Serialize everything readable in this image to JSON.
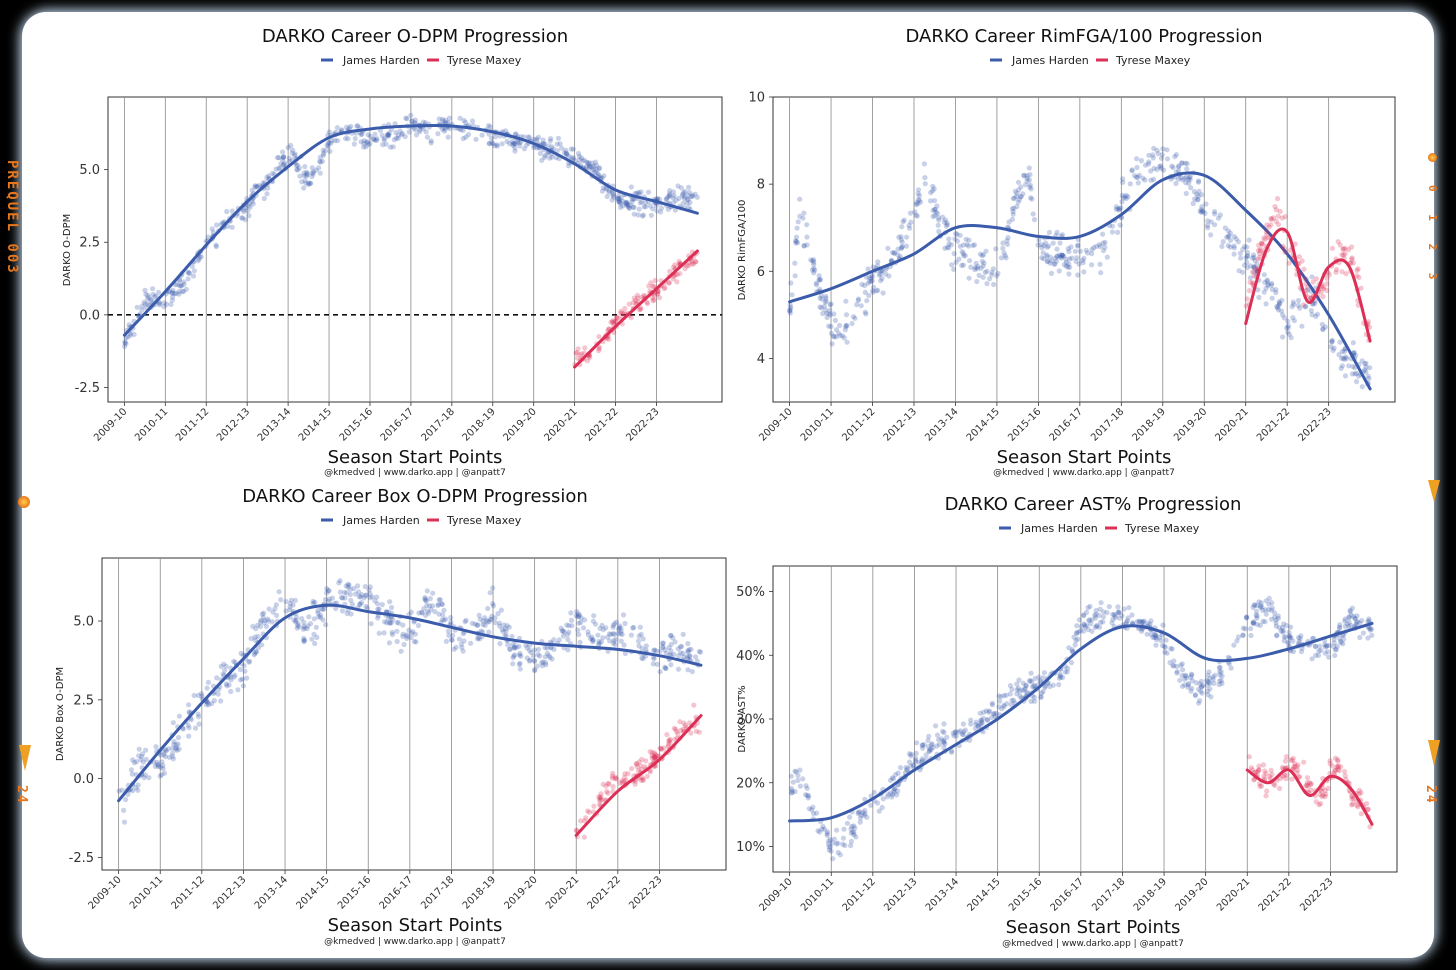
{
  "frame": {
    "left_label": "PREQUEL 003",
    "left_frame_no": "24",
    "right_counter": "0 1 2 3",
    "right_frame_no": "24",
    "accent": "#e8761c"
  },
  "colors": {
    "harden": "#3b5bab",
    "maxey": "#dc2f55"
  },
  "chart_data": [
    {
      "type": "scatter",
      "title": "DARKO Career O-DPM Progression",
      "xlabel": "Season Start Points",
      "ylabel": "DARKO O-DPM",
      "credit": "@kmedved | www.darko.app | @anpatt7",
      "legend": [
        "James Harden",
        "Tyrese Maxey"
      ],
      "categories": [
        "2009-10",
        "2010-11",
        "2011-12",
        "2012-13",
        "2013-14",
        "2014-15",
        "2015-16",
        "2016-17",
        "2017-18",
        "2018-19",
        "2019-20",
        "2020-21",
        "2021-22",
        "2022-23"
      ],
      "xlim": [
        -0.4,
        14.6
      ],
      "ylim": [
        -3.0,
        7.5
      ],
      "yticks": [
        -2.5,
        0.0,
        2.5,
        5.0
      ],
      "ytick_labels": [
        "-2.5",
        "0.0",
        "2.5",
        "5.0"
      ],
      "hline": 0,
      "series": [
        {
          "name": "James Harden",
          "noise": 0.3,
          "trend_x": [
            0,
            1,
            2,
            3,
            4,
            5,
            6,
            7,
            8,
            9,
            10,
            11,
            12,
            13,
            14
          ],
          "trend_y": [
            -0.7,
            0.8,
            2.4,
            3.9,
            5.1,
            6.1,
            6.4,
            6.5,
            6.5,
            6.3,
            5.9,
            5.2,
            4.3,
            3.9,
            3.5
          ],
          "points_x": [
            0,
            0.5,
            1,
            1.5,
            2,
            2.5,
            3,
            3.5,
            4,
            4.25,
            4.5,
            4.75,
            5,
            5.5,
            6,
            6.5,
            7,
            7.5,
            8,
            8.5,
            9,
            9.5,
            10,
            10.5,
            11,
            11.5,
            12,
            12.5,
            13,
            13.5,
            14
          ],
          "points_y": [
            -1.0,
            0.4,
            0.5,
            1.2,
            2.5,
            3.2,
            3.8,
            4.5,
            5.6,
            5.2,
            4.4,
            5.3,
            6.0,
            6.4,
            6.0,
            6.2,
            6.6,
            6.4,
            6.5,
            6.5,
            6.1,
            6.0,
            5.9,
            5.7,
            5.4,
            5.0,
            4.0,
            3.8,
            3.8,
            4.0,
            4.1
          ]
        },
        {
          "name": "Tyrese Maxey",
          "noise": 0.25,
          "trend_x": [
            11,
            12,
            13,
            14
          ],
          "trend_y": [
            -1.8,
            -0.4,
            0.9,
            2.2
          ],
          "points_x": [
            11,
            11.5,
            12,
            12.5,
            13,
            13.5,
            14
          ],
          "points_y": [
            -1.5,
            -1.3,
            -0.2,
            0.4,
            0.9,
            1.5,
            2.0
          ]
        }
      ]
    },
    {
      "type": "scatter",
      "title": "DARKO Career RimFGA/100 Progression",
      "xlabel": "Season Start Points",
      "ylabel": "DARKO RimFGA/100",
      "credit": "@kmedved | www.darko.app | @anpatt7",
      "legend": [
        "James Harden",
        "Tyrese Maxey"
      ],
      "categories": [
        "2009-10",
        "2010-11",
        "2011-12",
        "2012-13",
        "2013-14",
        "2014-15",
        "2015-16",
        "2016-17",
        "2017-18",
        "2018-19",
        "2019-20",
        "2020-21",
        "2021-22",
        "2022-23"
      ],
      "xlim": [
        -0.4,
        14.6
      ],
      "ylim": [
        3.0,
        10.0
      ],
      "yticks": [
        4,
        6,
        8,
        10
      ],
      "ytick_labels": [
        "4",
        "6",
        "8",
        "10"
      ],
      "series": [
        {
          "name": "James Harden",
          "noise": 0.35,
          "trend_x": [
            0,
            1,
            2,
            3,
            4,
            5,
            6,
            7,
            8,
            9,
            10,
            11,
            12,
            13,
            14
          ],
          "trend_y": [
            5.3,
            5.6,
            6.0,
            6.4,
            7.0,
            7.0,
            6.8,
            6.8,
            7.3,
            8.1,
            8.2,
            7.4,
            6.4,
            5.0,
            3.3
          ],
          "points_x": [
            0,
            0.25,
            0.5,
            0.75,
            1,
            1.25,
            1.5,
            2,
            2.5,
            3,
            3.25,
            3.5,
            4,
            4.5,
            5,
            5.5,
            5.75,
            6,
            6.5,
            7,
            7.5,
            8,
            8.5,
            9,
            9.5,
            10,
            10.5,
            11,
            11.5,
            12,
            12.5,
            13,
            13.5,
            14
          ],
          "points_y": [
            5.0,
            7.5,
            6.2,
            5.5,
            4.8,
            4.5,
            5.0,
            5.8,
            6.2,
            7.5,
            8.0,
            7.4,
            6.4,
            6.2,
            6.0,
            7.8,
            8.2,
            6.6,
            6.4,
            6.3,
            6.5,
            7.5,
            8.5,
            8.6,
            8.3,
            7.4,
            6.8,
            6.3,
            5.6,
            4.6,
            5.6,
            4.4,
            4.0,
            3.6
          ]
        },
        {
          "name": "Tyrese Maxey",
          "noise": 0.35,
          "trend_x": [
            11,
            11.5,
            12,
            12.5,
            13,
            13.5,
            14
          ],
          "trend_y": [
            4.8,
            6.5,
            6.9,
            5.3,
            6.1,
            6.1,
            4.4
          ],
          "points_x": [
            11,
            11.25,
            11.5,
            11.75,
            12,
            12.25,
            12.5,
            12.75,
            13,
            13.25,
            13.5,
            13.75,
            14
          ],
          "points_y": [
            5.0,
            6.0,
            6.8,
            7.4,
            6.6,
            6.0,
            5.4,
            5.6,
            6.0,
            6.2,
            6.4,
            5.6,
            4.5
          ]
        }
      ]
    },
    {
      "type": "scatter",
      "title": "DARKO Career Box O-DPM Progression",
      "xlabel": "Season Start Points",
      "ylabel": "DARKO Box O-DPM",
      "credit": "@kmedved | www.darko.app | @anpatt7",
      "legend": [
        "James Harden",
        "Tyrese Maxey"
      ],
      "categories": [
        "2009-10",
        "2010-11",
        "2011-12",
        "2012-13",
        "2013-14",
        "2014-15",
        "2015-16",
        "2016-17",
        "2017-18",
        "2018-19",
        "2019-20",
        "2020-21",
        "2021-22",
        "2022-23"
      ],
      "xlim": [
        -0.4,
        14.6
      ],
      "ylim": [
        -2.9,
        7.0
      ],
      "yticks": [
        -2.5,
        0.0,
        2.5,
        5.0
      ],
      "ytick_labels": [
        "-2.5",
        "0.0",
        "2.5",
        "5.0"
      ],
      "series": [
        {
          "name": "James Harden",
          "noise": 0.45,
          "trend_x": [
            0,
            1,
            2,
            3,
            4,
            5,
            6,
            7,
            8,
            9,
            10,
            11,
            12,
            13,
            14
          ],
          "trend_y": [
            -0.7,
            0.9,
            2.4,
            3.8,
            5.1,
            5.5,
            5.3,
            5.1,
            4.8,
            4.5,
            4.3,
            4.2,
            4.1,
            3.9,
            3.6
          ],
          "points_x": [
            0,
            0.5,
            1,
            1.5,
            2,
            2.5,
            3,
            3.5,
            4,
            4.5,
            5,
            5.5,
            6,
            6.5,
            7,
            7.5,
            8,
            8.5,
            9,
            9.5,
            10,
            10.5,
            11,
            11.5,
            12,
            12.5,
            13,
            13.5,
            14
          ],
          "points_y": [
            -1.0,
            0.4,
            0.5,
            1.6,
            2.5,
            3.2,
            3.5,
            5.0,
            5.6,
            4.6,
            5.5,
            5.8,
            5.7,
            5.0,
            4.6,
            5.8,
            4.7,
            4.4,
            5.4,
            4.0,
            3.9,
            4.1,
            5.0,
            4.5,
            4.6,
            4.2,
            3.9,
            4.0,
            3.8
          ]
        },
        {
          "name": "Tyrese Maxey",
          "noise": 0.35,
          "trend_x": [
            11,
            12,
            13,
            14
          ],
          "trend_y": [
            -1.8,
            -0.4,
            0.6,
            2.0
          ],
          "points_x": [
            11,
            11.5,
            12,
            12.5,
            13,
            13.5,
            14
          ],
          "points_y": [
            -1.6,
            -0.8,
            0.0,
            0.2,
            0.8,
            1.6,
            1.9
          ]
        }
      ]
    },
    {
      "type": "scatter",
      "title": "DARKO Career AST% Progression",
      "xlabel": "Season Start Points",
      "ylabel": "DARKO AST%",
      "credit": "@kmedved | www.darko.app | @anpatt7",
      "legend": [
        "James Harden",
        "Tyrese Maxey"
      ],
      "categories": [
        "2009-10",
        "2010-11",
        "2011-12",
        "2012-13",
        "2013-14",
        "2014-15",
        "2015-16",
        "2016-17",
        "2017-18",
        "2018-19",
        "2019-20",
        "2020-21",
        "2021-22",
        "2022-23"
      ],
      "xlim": [
        -0.4,
        14.6
      ],
      "ylim": [
        6,
        54
      ],
      "yticks": [
        10,
        20,
        30,
        40,
        50
      ],
      "ytick_labels": [
        "10%",
        "20%",
        "30%",
        "40%",
        "50%"
      ],
      "series": [
        {
          "name": "James Harden",
          "noise": 1.6,
          "trend_x": [
            0,
            1,
            2,
            3,
            4,
            5,
            6,
            7,
            8,
            9,
            10,
            11,
            12,
            13,
            14
          ],
          "trend_y": [
            14,
            14.5,
            17.5,
            22,
            26,
            30,
            35,
            41,
            44.5,
            43.5,
            39.5,
            39.5,
            41,
            43,
            45
          ],
          "points_x": [
            0,
            0.25,
            0.5,
            0.75,
            1,
            1.5,
            2,
            2.5,
            3,
            3.5,
            4,
            4.5,
            5,
            5.5,
            6,
            6.5,
            7,
            7.5,
            8,
            8.5,
            9,
            9.5,
            10,
            10.5,
            11,
            11.5,
            12,
            12.5,
            13,
            13.5,
            14
          ],
          "points_y": [
            20,
            21,
            17,
            13,
            10,
            13,
            17,
            19,
            24,
            26,
            27,
            29,
            32,
            34,
            35,
            36,
            45,
            46,
            46,
            45,
            42,
            36,
            35,
            38,
            45,
            48,
            42,
            41,
            41,
            46,
            44
          ]
        },
        {
          "name": "Tyrese Maxey",
          "noise": 1.5,
          "trend_x": [
            11,
            11.5,
            12,
            12.5,
            13,
            13.5,
            14
          ],
          "trend_y": [
            22,
            20,
            22,
            18,
            21,
            19,
            13.5
          ],
          "points_x": [
            11,
            11.25,
            11.5,
            11.75,
            12,
            12.25,
            12.5,
            12.75,
            13,
            13.25,
            13.5,
            13.75,
            14
          ],
          "points_y": [
            24,
            21,
            20,
            20,
            23,
            22,
            19,
            18,
            22,
            23,
            18,
            17,
            14
          ]
        }
      ]
    }
  ]
}
